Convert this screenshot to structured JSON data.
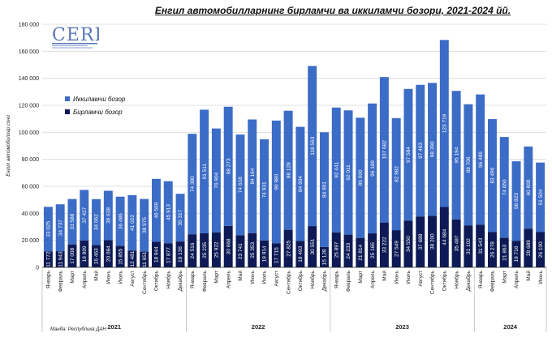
{
  "title": "Енгил автомобилларнинг бирламчи ва иккиламчи бозори, 2021-2024 йй.",
  "logo_text": "CERR",
  "source": "Манба: Республика ДАН",
  "colors": {
    "primary": "#0d1a55",
    "secondary": "#3b6cc6",
    "grid": "#d9d9d9",
    "axis": "#222222"
  },
  "chart_data": {
    "type": "bar",
    "stacked": true,
    "ylabel": "Енгил автомобиллар сони",
    "ylim": [
      0,
      180000
    ],
    "yticks": [
      0,
      20000,
      40000,
      60000,
      80000,
      100000,
      120000,
      140000,
      160000,
      180000
    ],
    "ytick_labels": [
      "0",
      "20 000",
      "40 000",
      "60 000",
      "80 000",
      "100 000",
      "120 000",
      "140 000",
      "160 000",
      "180 000"
    ],
    "grid": true,
    "legend_position": "top-left",
    "categories": [
      "Январь",
      "Февраль",
      "Март",
      "Апрель",
      "Май",
      "Июнь",
      "Июль",
      "Август",
      "Сентябрь",
      "Октябрь",
      "Ноябрь",
      "Декабрь",
      "Январь",
      "Февраль",
      "Март",
      "Апрель",
      "Май",
      "Июнь",
      "Июль",
      "Август",
      "Сентябрь",
      "Октябрь",
      "Ноябрь",
      "Декабрь",
      "Январь",
      "Февраль",
      "Март",
      "Апрель",
      "Май",
      "Июнь",
      "Июль",
      "Август",
      "Сентябрь",
      "Октябрь",
      "Ноябрь",
      "Декабрь",
      "Январь",
      "Февраль",
      "Март",
      "Апрель",
      "Май",
      "Июнь"
    ],
    "years": [
      {
        "label": "2021",
        "start": 0,
        "count": 12
      },
      {
        "label": "2022",
        "start": 12,
        "count": 12
      },
      {
        "label": "2023",
        "start": 24,
        "count": 12
      },
      {
        "label": "2024",
        "start": 36,
        "count": 6
      }
    ],
    "series": [
      {
        "name": "Бирламчи бозор",
        "values": [
          11772,
          11943,
          17008,
          19899,
          16463,
          20084,
          15855,
          12481,
          11651,
          18944,
          17877,
          19136,
          24516,
          25235,
          25922,
          30668,
          23741,
          25353,
          19914,
          17715,
          27825,
          19493,
          30551,
          15128,
          25897,
          24233,
          21814,
          25165,
          33222,
          27549,
          34550,
          37688,
          38200,
          44684,
          35487,
          31102,
          31543,
          26278,
          21863,
          19716,
          28689,
          26100
        ],
        "labels": [
          "11 772",
          "11 943",
          "17 008",
          "19 899",
          "16 463",
          "20 084",
          "15 855",
          "12 481",
          "11 651",
          "18 944",
          "17 877",
          "19 136",
          "24 516",
          "25 235",
          "25 922",
          "30 668",
          "23 741",
          "25 353",
          "19 914",
          "17 715",
          "27 825",
          "19 493",
          "30 551",
          "15 128",
          "25 897",
          "24 233",
          "21 814",
          "25 165",
          "33 222",
          "27 549",
          "34 550",
          "37 688",
          "38 200",
          "44 684",
          "35 487",
          "31 102",
          "31 543",
          "26 278",
          "21 863",
          "19 716",
          "28 689",
          "26 100"
        ]
      },
      {
        "name": "Иккиламчи бозор",
        "values": [
          33025,
          34737,
          33588,
          37427,
          34062,
          36638,
          36486,
          41022,
          38975,
          46569,
          45913,
          35317,
          74380,
          91511,
          76904,
          88273,
          74618,
          84164,
          74931,
          90980,
          88128,
          84604,
          118563,
          84901,
          92441,
          92011,
          89000,
          96189,
          107682,
          82982,
          97584,
          97463,
          98390,
          123719,
          95194,
          89706,
          96489,
          83496,
          74650,
          58823,
          60800,
          51504
        ],
        "labels": [
          "33 025",
          "34 737",
          "33 588",
          "37 427",
          "34 062",
          "36 638",
          "36 486",
          "41 022",
          "38 975",
          "46 569",
          "45 913",
          "35 317",
          "74 380",
          "91 511",
          "76 904",
          "88 273",
          "74 618",
          "84 164",
          "74 931",
          "90 980",
          "88 128",
          "84 604",
          "118 563",
          "84 901",
          "92 441",
          "92 011",
          "89 000",
          "96 189",
          "107 682",
          "82 982",
          "97 584",
          "97 463",
          "98 390",
          "123 719",
          "95 194",
          "89 706",
          "96 489",
          "83 496",
          "74 650",
          "58 823",
          "60 800",
          "51 504"
        ]
      }
    ]
  }
}
